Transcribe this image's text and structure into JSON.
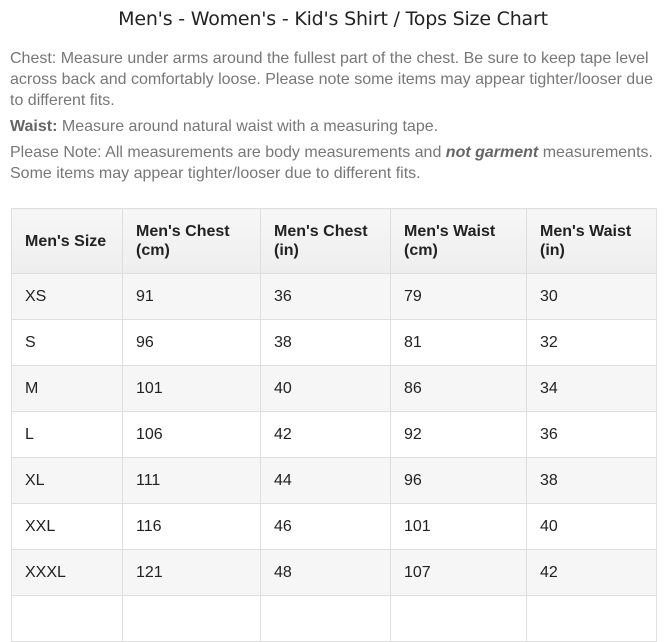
{
  "header": {
    "title": "Men's - Women's - Kid's Shirt / Tops Size Chart"
  },
  "notes": {
    "chest": "Chest: Measure under arms around the fullest part of the chest. Be sure to keep tape level across back and comfortably loose. Please note some items may appear tighter/looser due to different fits.",
    "waist_label": "Waist:",
    "waist_text": "Measure around natural waist with a measuring tape.",
    "note_start": "Please Note: All measurements are body measurements and",
    "note_emphasis": "not garment",
    "note_end": "measurements. Some items may appear tighter/looser due to different fits."
  },
  "table": {
    "columns": [
      "Men's Size",
      "Men's Chest (cm)",
      "Men's Chest (in)",
      "Men's Waist (cm)",
      "Men's Waist (in)"
    ],
    "rows": [
      [
        "XS",
        91,
        36,
        79,
        30
      ],
      [
        "S",
        96,
        38,
        81,
        32
      ],
      [
        "M",
        101,
        40,
        86,
        34
      ],
      [
        "L",
        106,
        42,
        92,
        36
      ],
      [
        "XL",
        111,
        44,
        96,
        38
      ],
      [
        "XXL",
        116,
        46,
        101,
        40
      ],
      [
        "XXXL",
        121,
        48,
        107,
        42
      ]
    ]
  }
}
